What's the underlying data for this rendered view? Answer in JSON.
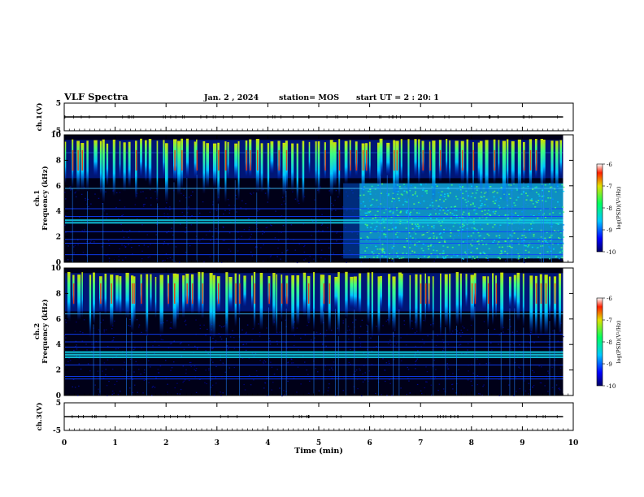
{
  "header": {
    "title": "VLF Spectra",
    "date": "Jan. 2 , 2024",
    "station": "station= MOS",
    "start": "start  UT =   2 : 20: 1"
  },
  "chart_data": [
    {
      "type": "line",
      "panel": "ch1-waveform",
      "ylabel": "ch.1(V)",
      "ylim": [
        -5,
        5
      ],
      "yticks": [
        "5",
        "-5"
      ],
      "series": [
        {
          "x": [
            0,
            9.8
          ],
          "y": [
            0,
            0
          ]
        }
      ]
    },
    {
      "type": "heatmap",
      "panel": "ch1-spectrogram",
      "ylabel": "ch.1\nFrequency (kHz)",
      "ylim": [
        0,
        10
      ],
      "yticks": [
        "0",
        "2",
        "4",
        "6",
        "8",
        "10"
      ],
      "colorbar": {
        "label": "log(PSD)(V²/Hz)",
        "ticks": [
          "-6",
          "-7",
          "-8",
          "-9",
          "-10"
        ],
        "range": [
          -10,
          -6
        ]
      },
      "data_end_min": 9.8,
      "broadband_onset_min": 5.8,
      "bands_khz": [
        0.6,
        1.5,
        1.8,
        2.4,
        3.1,
        3.3,
        3.6,
        4.2,
        5.8,
        8.6
      ]
    },
    {
      "type": "heatmap",
      "panel": "ch2-spectrogram",
      "ylabel": "ch.2\nFrequency (kHz)",
      "ylim": [
        0,
        10
      ],
      "yticks": [
        "0",
        "2",
        "4",
        "6",
        "8",
        "10"
      ],
      "colorbar": {
        "label": "log(PSD)(V²/Hz)",
        "ticks": [
          "-6",
          "-7",
          "-8",
          "-9",
          "-10"
        ],
        "range": [
          -10,
          -6
        ]
      },
      "data_end_min": 9.8,
      "bands_khz": [
        1.3,
        1.5,
        2.4,
        3.0,
        3.2,
        3.4,
        3.8,
        4.2,
        4.8,
        6.4
      ]
    },
    {
      "type": "line",
      "panel": "ch3-waveform",
      "ylabel": "ch.3(V)",
      "ylim": [
        -5,
        5
      ],
      "yticks": [
        "5",
        "-5"
      ],
      "series": [
        {
          "x": [
            0,
            9.8
          ],
          "y": [
            0,
            0
          ]
        }
      ]
    }
  ],
  "xaxis": {
    "label": "Time (min)",
    "ticks": [
      "0",
      "1",
      "2",
      "3",
      "4",
      "5",
      "6",
      "7",
      "8",
      "9",
      "10"
    ],
    "xlim": [
      0,
      10
    ]
  }
}
